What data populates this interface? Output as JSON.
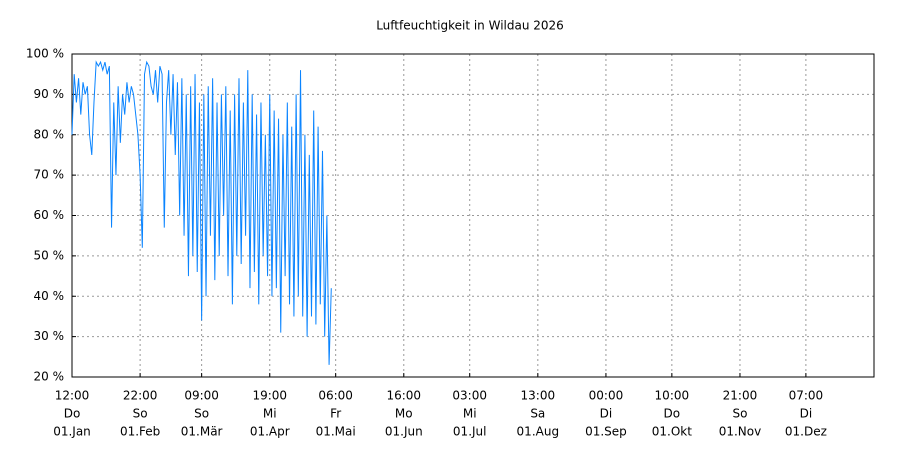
{
  "chart_data": {
    "type": "line",
    "title": "Luftfeuchtigkeit in Wildau 2026",
    "color": "#0a84ff",
    "grid": true,
    "xlim": [
      0,
      365
    ],
    "ylim": [
      20,
      100
    ],
    "yticks": [
      {
        "value": 20,
        "label": "20 %"
      },
      {
        "value": 30,
        "label": "30 %"
      },
      {
        "value": 40,
        "label": "40 %"
      },
      {
        "value": 50,
        "label": "50 %"
      },
      {
        "value": 60,
        "label": "60 %"
      },
      {
        "value": 70,
        "label": "70 %"
      },
      {
        "value": 80,
        "label": "80 %"
      },
      {
        "value": 90,
        "label": "90 %"
      },
      {
        "value": 100,
        "label": "100 %"
      }
    ],
    "xticks": [
      {
        "value": 0,
        "label": [
          "12:00",
          "Do",
          "01.Jan"
        ]
      },
      {
        "value": 31,
        "label": [
          "22:00",
          "So",
          "01.Feb"
        ]
      },
      {
        "value": 59,
        "label": [
          "09:00",
          "So",
          "01.Mär"
        ]
      },
      {
        "value": 90,
        "label": [
          "19:00",
          "Mi",
          "01.Apr"
        ]
      },
      {
        "value": 120,
        "label": [
          "06:00",
          "Fr",
          "01.Mai"
        ]
      },
      {
        "value": 151,
        "label": [
          "16:00",
          "Mo",
          "01.Jun"
        ]
      },
      {
        "value": 181,
        "label": [
          "03:00",
          "Mi",
          "01.Jul"
        ]
      },
      {
        "value": 212,
        "label": [
          "13:00",
          "Sa",
          "01.Aug"
        ]
      },
      {
        "value": 243,
        "label": [
          "00:00",
          "Di",
          "01.Sep"
        ]
      },
      {
        "value": 273,
        "label": [
          "10:00",
          "Do",
          "01.Okt"
        ]
      },
      {
        "value": 304,
        "label": [
          "21:00",
          "So",
          "01.Nov"
        ]
      },
      {
        "value": 334,
        "label": [
          "07:00",
          "Di",
          "01.Dez"
        ]
      }
    ],
    "x": [
      0,
      1,
      2,
      3,
      4,
      5,
      6,
      7,
      8,
      9,
      10,
      11,
      12,
      13,
      14,
      15,
      16,
      17,
      18,
      19,
      20,
      21,
      22,
      23,
      24,
      25,
      26,
      27,
      28,
      29,
      30,
      31,
      32,
      33,
      34,
      35,
      36,
      37,
      38,
      39,
      40,
      41,
      42,
      43,
      44,
      45,
      46,
      47,
      48,
      49,
      50,
      51,
      52,
      53,
      54,
      55,
      56,
      57,
      58,
      59,
      60,
      61,
      62,
      63,
      64,
      65,
      66,
      67,
      68,
      69,
      70,
      71,
      72,
      73,
      74,
      75,
      76,
      77,
      78,
      79,
      80,
      81,
      82,
      83,
      84,
      85,
      86,
      87,
      88,
      89,
      90,
      91,
      92,
      93,
      94,
      95,
      96,
      97,
      98,
      99,
      100,
      101,
      102,
      103,
      104,
      105,
      106,
      107,
      108,
      109,
      110,
      111,
      112,
      113,
      114,
      115,
      116,
      117,
      118
    ],
    "values": [
      80,
      95,
      88,
      94,
      85,
      93,
      90,
      92,
      80,
      75,
      88,
      98,
      97,
      98,
      96,
      98,
      95,
      97,
      57,
      88,
      70,
      92,
      78,
      90,
      85,
      93,
      88,
      92,
      90,
      85,
      80,
      70,
      52,
      95,
      98,
      97,
      92,
      90,
      96,
      88,
      97,
      95,
      57,
      88,
      96,
      80,
      95,
      75,
      93,
      60,
      94,
      55,
      90,
      45,
      92,
      50,
      95,
      46,
      88,
      34,
      90,
      40,
      92,
      55,
      94,
      44,
      88,
      50,
      90,
      60,
      92,
      45,
      86,
      38,
      90,
      50,
      94,
      48,
      88,
      55,
      96,
      42,
      90,
      46,
      85,
      38,
      88,
      50,
      80,
      45,
      90,
      40,
      86,
      42,
      84,
      31,
      80,
      45,
      88,
      38,
      82,
      35,
      90,
      40,
      96,
      35,
      80,
      30,
      75,
      35,
      86,
      33,
      82,
      38,
      76,
      30,
      60,
      23,
      42
    ]
  }
}
